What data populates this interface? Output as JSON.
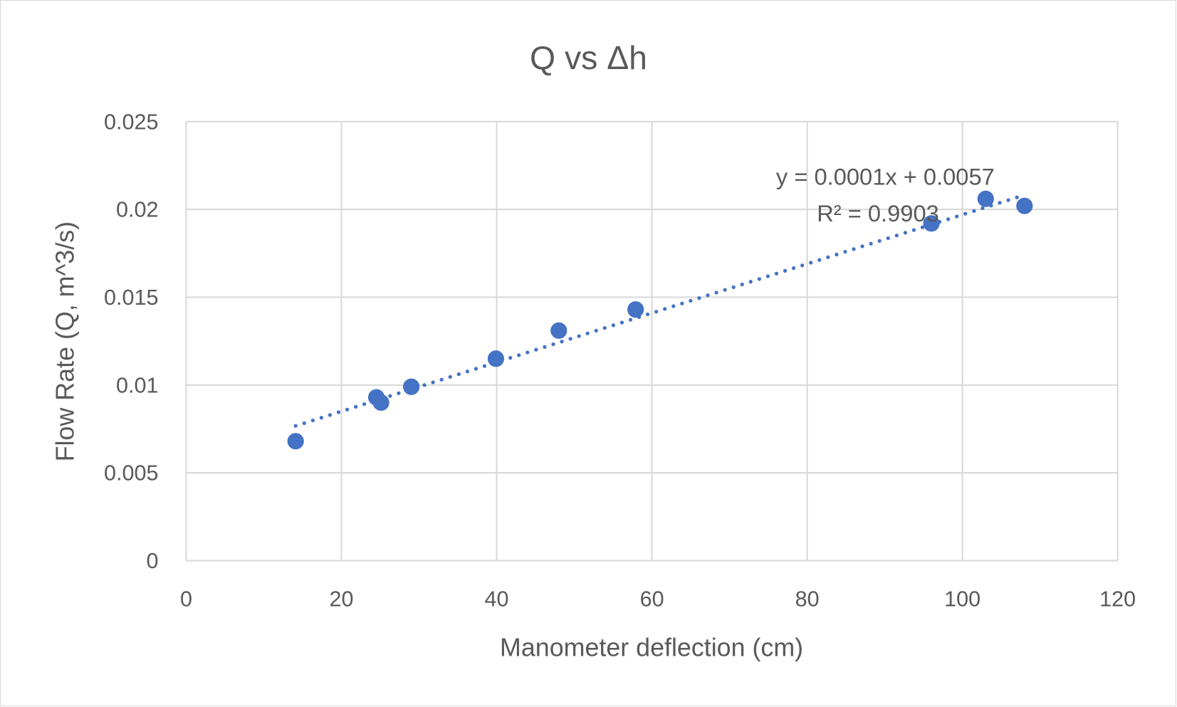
{
  "chart_data": {
    "type": "scatter",
    "title": "Q vs Δh",
    "xlabel": "Manometer deflection (cm)",
    "ylabel": "Flow Rate (Q, m^3/s)",
    "xlim": [
      0,
      120
    ],
    "ylim": [
      0,
      0.025
    ],
    "xticks": [
      0,
      20,
      40,
      60,
      80,
      100,
      120
    ],
    "yticks": [
      0,
      0.005,
      0.01,
      0.015,
      0.02,
      0.025
    ],
    "ytick_labels": [
      "0",
      "0.005",
      "0.01",
      "0.015",
      "0.02",
      "0.025"
    ],
    "grid": true,
    "legend": "none",
    "marker_color": "#4472C4",
    "points": [
      {
        "x": 14.1,
        "y": 0.0068
      },
      {
        "x": 24.5,
        "y": 0.0093
      },
      {
        "x": 25.1,
        "y": 0.009
      },
      {
        "x": 29.0,
        "y": 0.0099
      },
      {
        "x": 39.9,
        "y": 0.0115
      },
      {
        "x": 48.0,
        "y": 0.0131
      },
      {
        "x": 57.9,
        "y": 0.0143
      },
      {
        "x": 96.0,
        "y": 0.0192
      },
      {
        "x": 103.0,
        "y": 0.0206
      },
      {
        "x": 108.0,
        "y": 0.0202
      }
    ],
    "trendline": {
      "type": "linear",
      "style": "dotted",
      "slope": 0.00014,
      "intercept": 0.0057,
      "x_range": [
        14.1,
        108.0
      ],
      "equation_label": "y = 0.0001x + 0.0057",
      "r2_label": "R² = 0.9903"
    }
  }
}
